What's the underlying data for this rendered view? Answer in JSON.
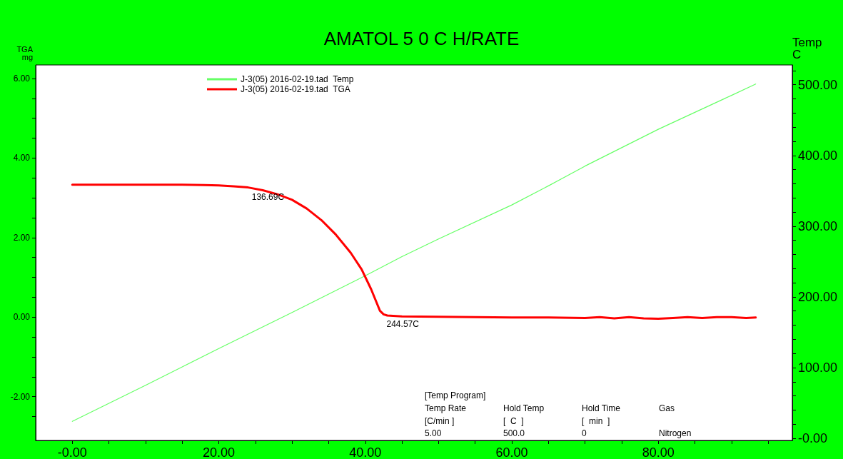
{
  "chart_data": {
    "type": "line",
    "title": "AMATOL 5 0 C H/RATE",
    "ylabel": "TGA\nmg",
    "y2label": "Temp\nC",
    "xlim": [
      -5,
      98.3
    ],
    "ylim": [
      -3.1,
      6.34
    ],
    "y2lim": [
      -3,
      528
    ],
    "xticks": [
      {
        "value": 0,
        "label": "-0.00"
      },
      {
        "value": 5,
        "label": null
      },
      {
        "value": 10,
        "label": null
      },
      {
        "value": 15,
        "label": null
      },
      {
        "value": 20,
        "label": "20.00"
      },
      {
        "value": 25,
        "label": null
      },
      {
        "value": 30,
        "label": null
      },
      {
        "value": 35,
        "label": null
      },
      {
        "value": 40,
        "label": "40.00"
      },
      {
        "value": 45,
        "label": null
      },
      {
        "value": 50,
        "label": null
      },
      {
        "value": 55,
        "label": null
      },
      {
        "value": 60,
        "label": "60.00"
      },
      {
        "value": 65,
        "label": null
      },
      {
        "value": 70,
        "label": null
      },
      {
        "value": 75,
        "label": null
      },
      {
        "value": 80,
        "label": "80.00"
      },
      {
        "value": 85,
        "label": null
      },
      {
        "value": 90,
        "label": null
      },
      {
        "value": 95,
        "label": null
      }
    ],
    "yticks": [
      {
        "value": -2.5,
        "label": null
      },
      {
        "value": -2,
        "label": "-2.00"
      },
      {
        "value": -1.5,
        "label": null
      },
      {
        "value": -1,
        "label": null
      },
      {
        "value": -0.5,
        "label": null
      },
      {
        "value": 0,
        "label": "0.00"
      },
      {
        "value": 0.5,
        "label": null
      },
      {
        "value": 1,
        "label": null
      },
      {
        "value": 1.5,
        "label": null
      },
      {
        "value": 2,
        "label": "2.00"
      },
      {
        "value": 2.5,
        "label": null
      },
      {
        "value": 3,
        "label": null
      },
      {
        "value": 3.5,
        "label": null
      },
      {
        "value": 4,
        "label": "4.00"
      },
      {
        "value": 4.5,
        "label": null
      },
      {
        "value": 5,
        "label": null
      },
      {
        "value": 5.5,
        "label": null
      },
      {
        "value": 6,
        "label": "6.00"
      }
    ],
    "y2ticks": [
      {
        "value": 0,
        "label": "-0.00"
      },
      {
        "value": 20,
        "label": null
      },
      {
        "value": 40,
        "label": null
      },
      {
        "value": 60,
        "label": null
      },
      {
        "value": 80,
        "label": null
      },
      {
        "value": 100,
        "label": "100.00"
      },
      {
        "value": 120,
        "label": null
      },
      {
        "value": 140,
        "label": null
      },
      {
        "value": 160,
        "label": null
      },
      {
        "value": 180,
        "label": null
      },
      {
        "value": 200,
        "label": "200.00"
      },
      {
        "value": 220,
        "label": null
      },
      {
        "value": 240,
        "label": null
      },
      {
        "value": 260,
        "label": null
      },
      {
        "value": 280,
        "label": null
      },
      {
        "value": 300,
        "label": "300.00"
      },
      {
        "value": 320,
        "label": null
      },
      {
        "value": 340,
        "label": null
      },
      {
        "value": 360,
        "label": null
      },
      {
        "value": 380,
        "label": null
      },
      {
        "value": 400,
        "label": "400.00"
      },
      {
        "value": 420,
        "label": null
      },
      {
        "value": 440,
        "label": null
      },
      {
        "value": 460,
        "label": null
      },
      {
        "value": 480,
        "label": null
      },
      {
        "value": 500,
        "label": "500.00"
      },
      {
        "value": 520,
        "label": null
      }
    ],
    "grid": false,
    "legend": "top left",
    "marker": "none",
    "line_style": "solid",
    "series": [
      {
        "name": "J-3(05) 2016-02-19.tad  Temp",
        "color": "#66ff66",
        "axis": "y2",
        "x": [
          0,
          10,
          20,
          30,
          40,
          45,
          50,
          60,
          65,
          70,
          80,
          90,
          93.3
        ],
        "values": [
          24,
          75,
          127,
          178,
          230,
          257,
          282,
          330,
          357,
          385,
          437,
          485,
          501
        ]
      },
      {
        "name": "J-3(05) 2016-02-19.tad  TGA",
        "color": "#ff0000",
        "x": [
          0,
          5,
          10,
          15,
          18,
          20,
          22,
          24,
          26,
          28,
          30,
          32,
          34,
          36,
          38,
          39.5,
          40.8,
          42,
          42.5,
          43,
          45,
          50,
          55,
          60,
          65,
          70,
          72,
          74,
          76,
          78,
          80,
          82,
          84,
          86,
          88,
          90,
          92,
          93.3
        ],
        "values": [
          3.33,
          3.33,
          3.33,
          3.33,
          3.32,
          3.31,
          3.29,
          3.26,
          3.19,
          3.09,
          2.95,
          2.73,
          2.44,
          2.07,
          1.62,
          1.2,
          0.7,
          0.16,
          0.07,
          0.04,
          0.02,
          0.01,
          0,
          -0.01,
          -0.01,
          -0.02,
          0,
          -0.03,
          0,
          -0.03,
          -0.04,
          -0.02,
          0,
          -0.02,
          0,
          0,
          -0.02,
          -0.01
        ]
      }
    ],
    "annotations": [
      {
        "text": "136.69C",
        "x": 24.5,
        "y": 3.26
      },
      {
        "text": "244.57C",
        "x": 42.9,
        "y": 0.05
      },
      "[Temp Program]",
      "Temp Rate",
      "Hold Temp",
      "Hold Time",
      "Gas",
      "[C/min ]",
      "[  C  ]",
      "[  min  ]",
      "5.00",
      "500.0",
      "0",
      "Nitrogen"
    ]
  }
}
